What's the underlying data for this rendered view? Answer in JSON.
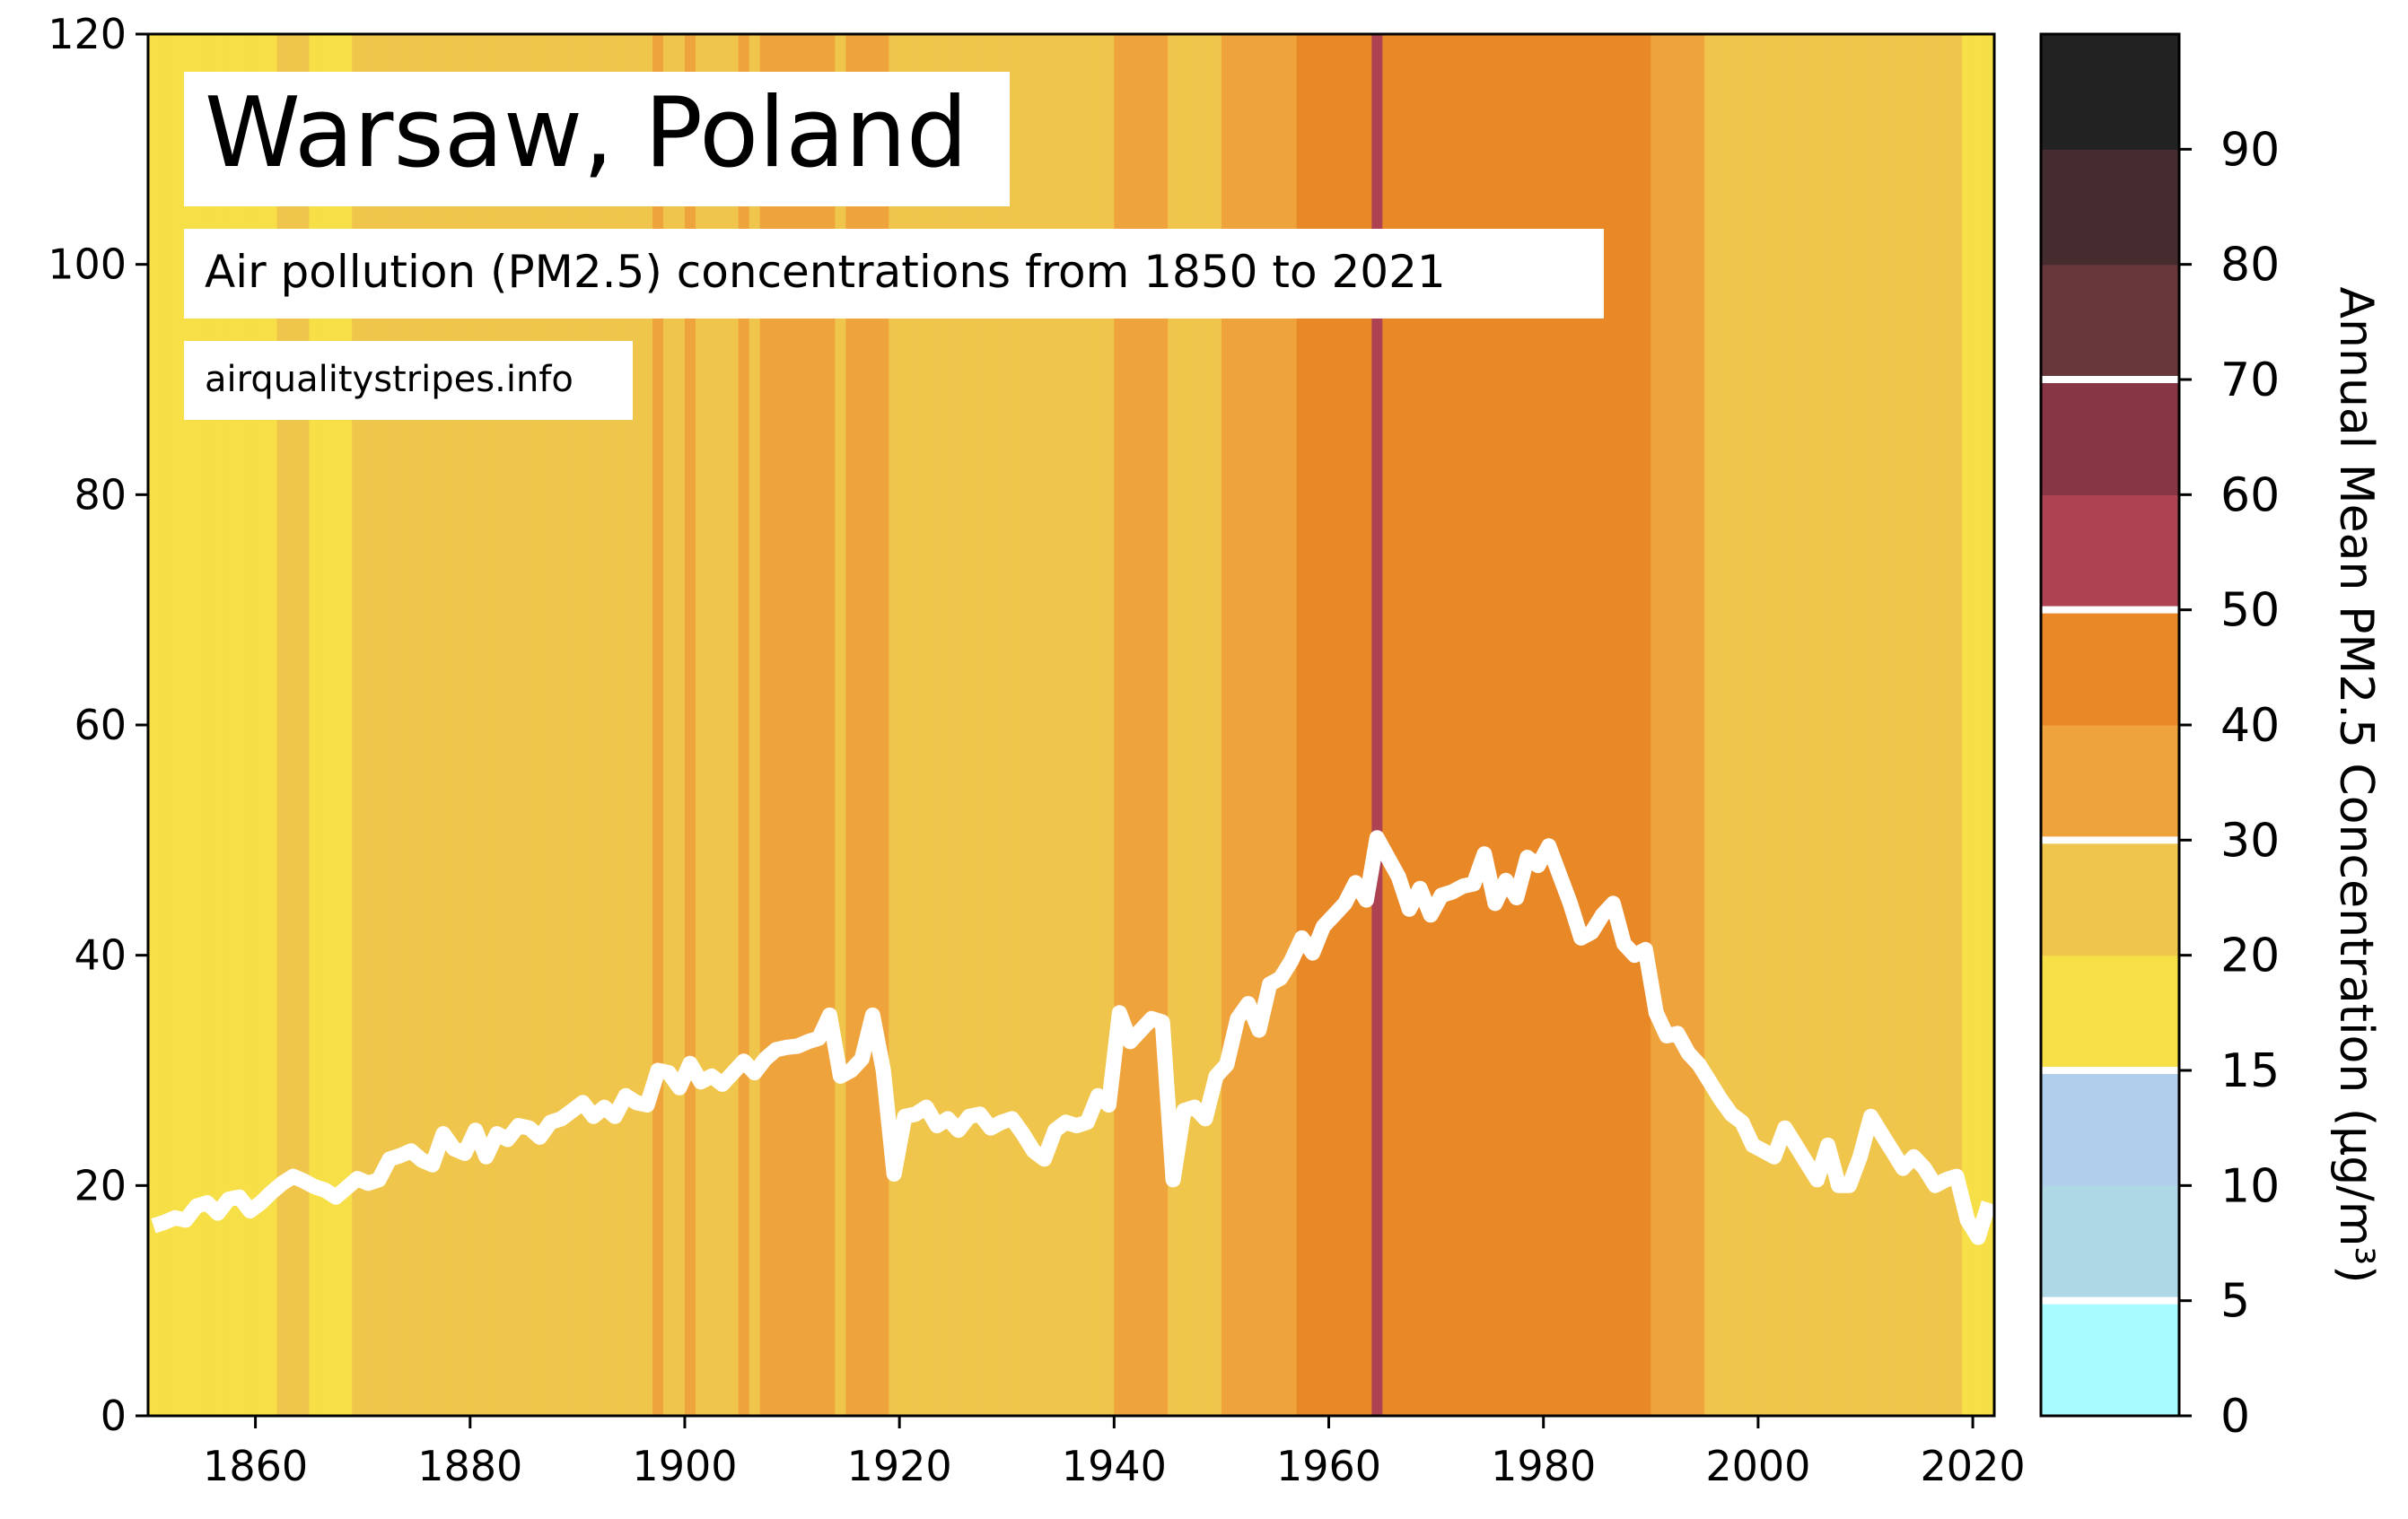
{
  "chart_data": {
    "type": "line",
    "title": "Warsaw, Poland",
    "subtitle": "Air pollution (PM2.5) concentrations from 1850 to 2021",
    "source": "airqualitystripes.info",
    "xlabel": "",
    "ylabel": "",
    "xlim": [
      1850,
      2022
    ],
    "ylim": [
      0,
      120
    ],
    "x_ticks": [
      1860,
      1880,
      1900,
      1920,
      1940,
      1960,
      1980,
      2000,
      2020
    ],
    "y_ticks": [
      0,
      20,
      40,
      60,
      80,
      100,
      120
    ],
    "grid": false,
    "line_color": "#ffffff",
    "stripe_colors": [
      {
        "max": 5,
        "color": "#a6fcff"
      },
      {
        "max": 10,
        "color": "#afd8e6"
      },
      {
        "max": 15,
        "color": "#b1cfec"
      },
      {
        "max": 20,
        "color": "#f6df47"
      },
      {
        "max": 30,
        "color": "#f0c54b"
      },
      {
        "max": 40,
        "color": "#efa33d"
      },
      {
        "max": 50,
        "color": "#e98826"
      },
      {
        "max": 60,
        "color": "#ad4352"
      },
      {
        "max": 70,
        "color": "#873646"
      },
      {
        "max": 80,
        "color": "#68373b"
      },
      {
        "max": 90,
        "color": "#452c2f"
      },
      {
        "max": 100,
        "color": "#222222"
      }
    ],
    "colorbar": {
      "label": "Annual Mean PM2.5 Concentration (μg/m³)",
      "tick_labels": [
        "0",
        "5",
        "10",
        "15",
        "20",
        "30",
        "40",
        "50",
        "60",
        "70",
        "80",
        "90"
      ],
      "separators_at_tick_index": [
        1,
        3,
        5,
        7,
        9
      ]
    },
    "series": [
      {
        "x": [
          1850,
          1851,
          1852,
          1853,
          1854,
          1855,
          1856,
          1857,
          1858,
          1859,
          1860,
          1861,
          1862,
          1863,
          1864,
          1865,
          1866,
          1867,
          1868,
          1869,
          1870,
          1871,
          1872,
          1873,
          1874,
          1875,
          1876,
          1877,
          1878,
          1879,
          1880,
          1881,
          1882,
          1883,
          1884,
          1885,
          1886,
          1887,
          1888,
          1889,
          1890,
          1891,
          1892,
          1893,
          1894,
          1895,
          1896,
          1897,
          1898,
          1899,
          1900,
          1901,
          1902,
          1903,
          1904,
          1905,
          1906,
          1907,
          1908,
          1909,
          1910,
          1911,
          1912,
          1913,
          1914,
          1915,
          1916,
          1917,
          1918,
          1919,
          1920,
          1921,
          1922,
          1923,
          1924,
          1925,
          1926,
          1927,
          1928,
          1929,
          1930,
          1931,
          1932,
          1933,
          1934,
          1935,
          1936,
          1937,
          1938,
          1939,
          1940,
          1941,
          1942,
          1943,
          1944,
          1945,
          1946,
          1947,
          1948,
          1949,
          1950,
          1951,
          1952,
          1953,
          1954,
          1955,
          1956,
          1957,
          1958,
          1959,
          1960,
          1961,
          1962,
          1963,
          1964,
          1965,
          1966,
          1967,
          1968,
          1969,
          1970,
          1971,
          1972,
          1973,
          1974,
          1975,
          1976,
          1977,
          1978,
          1979,
          1980,
          1981,
          1982,
          1983,
          1984,
          1985,
          1986,
          1987,
          1988,
          1989,
          1990,
          1991,
          1992,
          1993,
          1994,
          1995,
          1996,
          1997,
          1998,
          1999,
          2000,
          2001,
          2002,
          2003,
          2004,
          2005,
          2006,
          2007,
          2008,
          2009,
          2010,
          2011,
          2012,
          2013,
          2014,
          2015,
          2016,
          2017,
          2018,
          2019,
          2020,
          2021
        ],
        "values": [
          16.5,
          16.8,
          17.2,
          17.0,
          18.2,
          18.5,
          17.6,
          18.8,
          19.0,
          17.8,
          18.5,
          19.4,
          20.2,
          20.8,
          20.4,
          19.9,
          19.6,
          19.0,
          19.8,
          20.6,
          20.2,
          20.5,
          22.3,
          22.6,
          23.0,
          22.2,
          21.8,
          24.5,
          23.2,
          22.8,
          24.8,
          22.5,
          24.5,
          24.0,
          25.2,
          25.0,
          24.2,
          25.5,
          25.8,
          26.5,
          27.2,
          26.0,
          26.8,
          26.0,
          27.8,
          27.2,
          27.0,
          30.0,
          29.8,
          28.5,
          30.6,
          29.0,
          29.5,
          28.8,
          29.8,
          30.8,
          29.8,
          31.0,
          31.8,
          32.0,
          32.1,
          32.5,
          32.8,
          34.8,
          29.5,
          30.0,
          31.0,
          34.8,
          30.0,
          21.0,
          26.0,
          26.2,
          26.8,
          25.2,
          25.8,
          24.8,
          26.0,
          26.2,
          25.0,
          25.5,
          25.8,
          24.5,
          23.0,
          22.3,
          24.8,
          25.5,
          25.2,
          25.5,
          27.8,
          27.0,
          35.0,
          32.5,
          33.5,
          34.5,
          34.2,
          20.5,
          26.5,
          26.8,
          25.8,
          29.5,
          30.5,
          34.5,
          35.8,
          33.5,
          37.5,
          38.0,
          39.5,
          41.5,
          40.2,
          42.5,
          43.5,
          44.5,
          46.3,
          44.8,
          50.2,
          48.5,
          46.8,
          44.0,
          45.8,
          43.5,
          45.2,
          45.5,
          46.0,
          46.2,
          48.8,
          44.5,
          46.5,
          45.0,
          48.5,
          47.8,
          49.5,
          47.0,
          44.5,
          41.5,
          42.0,
          43.5,
          44.5,
          41.0,
          40.0,
          40.5,
          35.0,
          33.0,
          33.2,
          31.5,
          30.5,
          29.0,
          27.5,
          26.2,
          25.5,
          23.5,
          23.0,
          22.5,
          25.0,
          23.5,
          22.0,
          20.5,
          23.5,
          20.0,
          20.0,
          22.5,
          26.0,
          24.5,
          23.0,
          21.5,
          22.5,
          21.5,
          20.0,
          20.5,
          20.8,
          17.0,
          15.5,
          18.5
        ]
      }
    ]
  }
}
